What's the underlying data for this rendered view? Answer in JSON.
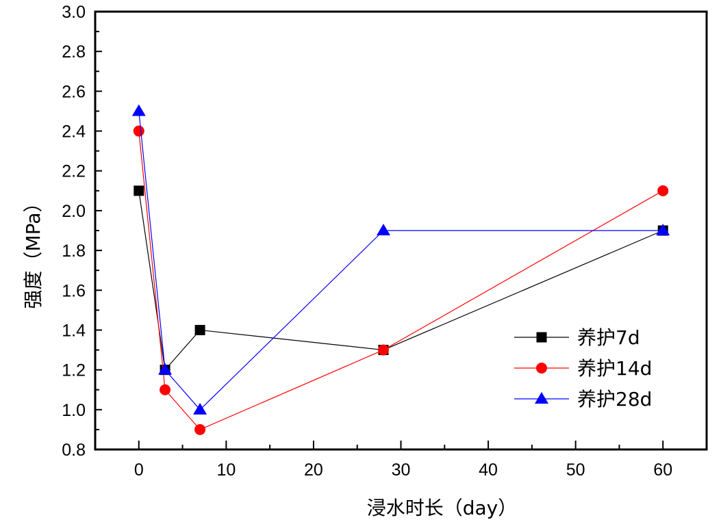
{
  "chart_data": {
    "type": "line",
    "title": "",
    "xlabel": "浸水时长（day）",
    "ylabel": "强度（MPa）",
    "xlim": [
      -5,
      65
    ],
    "ylim": [
      0.8,
      3.0
    ],
    "x_ticks": [
      0,
      10,
      20,
      30,
      40,
      50,
      60
    ],
    "x_tick_labels": [
      "0",
      "10",
      "20",
      "30",
      "40",
      "50",
      "60"
    ],
    "x_minor_step": 5,
    "y_ticks": [
      0.8,
      1.0,
      1.2,
      1.4,
      1.6,
      1.8,
      2.0,
      2.2,
      2.4,
      2.6,
      2.8,
      3.0
    ],
    "y_tick_labels": [
      "0.8",
      "1.0",
      "1.2",
      "1.4",
      "1.6",
      "1.8",
      "2.0",
      "2.2",
      "2.4",
      "2.6",
      "2.8",
      "3.0"
    ],
    "y_minor_step": 0.1,
    "grid": false,
    "legend_position": "right-middle",
    "x": [
      0,
      3,
      7,
      28,
      60
    ],
    "series": [
      {
        "name": "养护7d",
        "marker": "square",
        "color": "#000000",
        "values": [
          2.1,
          1.2,
          1.4,
          1.3,
          1.9
        ]
      },
      {
        "name": "养护14d",
        "marker": "circle",
        "color": "#ff0000",
        "values": [
          2.4,
          1.1,
          0.9,
          1.3,
          2.1
        ]
      },
      {
        "name": "养护28d",
        "marker": "triangle",
        "color": "#0000ff",
        "values": [
          2.5,
          1.2,
          1.0,
          1.9,
          1.9
        ]
      }
    ]
  }
}
